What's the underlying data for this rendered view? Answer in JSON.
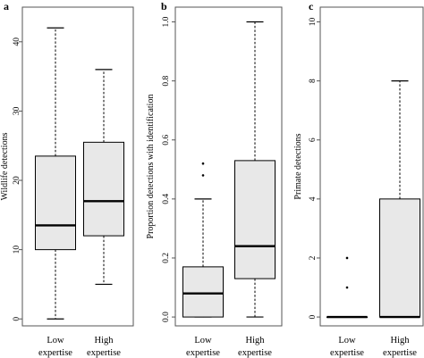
{
  "figure": {
    "panels": [
      {
        "letter": "a",
        "ylabel": "Wildlife detections"
      },
      {
        "letter": "b",
        "ylabel": "Proportion detections with identification"
      },
      {
        "letter": "c",
        "ylabel": "Primate detections"
      }
    ]
  },
  "chart_data": [
    {
      "type": "box",
      "panel": "a",
      "title": "",
      "xlabel": "",
      "ylabel": "Wildlife detections",
      "categories": [
        [
          "Low",
          "expertise"
        ],
        [
          "High",
          "expertise"
        ]
      ],
      "ylim": [
        -1,
        45
      ],
      "yticks": [
        0,
        10,
        20,
        30,
        40
      ],
      "ytick_labels": [
        "0",
        "10",
        "20",
        "30",
        "40"
      ],
      "boxes": [
        {
          "min": 0,
          "q1": 10,
          "median": 13.5,
          "q3": 23.5,
          "max": 42,
          "outliers": []
        },
        {
          "min": 5,
          "q1": 12,
          "median": 17,
          "q3": 25.5,
          "max": 36,
          "outliers": []
        }
      ],
      "grid": false
    },
    {
      "type": "box",
      "panel": "b",
      "title": "",
      "xlabel": "",
      "ylabel": "Proportion detections with identification",
      "categories": [
        [
          "Low",
          "expertise"
        ],
        [
          "High",
          "expertise"
        ]
      ],
      "ylim": [
        -0.03,
        1.05
      ],
      "yticks": [
        0.0,
        0.2,
        0.4,
        0.6,
        0.8,
        1.0
      ],
      "ytick_labels": [
        "0.0",
        "0.2",
        "0.4",
        "0.6",
        "0.8",
        "1.0"
      ],
      "boxes": [
        {
          "min": 0,
          "q1": 0,
          "median": 0.08,
          "q3": 0.17,
          "max": 0.4,
          "outliers": [
            0.48,
            0.52
          ]
        },
        {
          "min": 0,
          "q1": 0.13,
          "median": 0.24,
          "q3": 0.53,
          "max": 1.0,
          "outliers": []
        }
      ],
      "grid": false
    },
    {
      "type": "box",
      "panel": "c",
      "title": "",
      "xlabel": "",
      "ylabel": "Primate detections",
      "categories": [
        [
          "Low",
          "expertise"
        ],
        [
          "High",
          "expertise"
        ]
      ],
      "ylim": [
        -0.3,
        10.5
      ],
      "yticks": [
        0,
        2,
        4,
        6,
        8,
        10
      ],
      "ytick_labels": [
        "0",
        "2",
        "4",
        "6",
        "8",
        "10"
      ],
      "boxes": [
        {
          "min": 0,
          "q1": 0,
          "median": 0,
          "q3": 0,
          "max": 0,
          "outliers": [
            1,
            2
          ]
        },
        {
          "min": 0,
          "q1": 0,
          "median": 0,
          "q3": 4,
          "max": 8,
          "outliers": []
        }
      ],
      "grid": false
    }
  ],
  "colors": {
    "box_fill": "#e8e8e8",
    "line": "#000000",
    "frame": "#555555"
  }
}
